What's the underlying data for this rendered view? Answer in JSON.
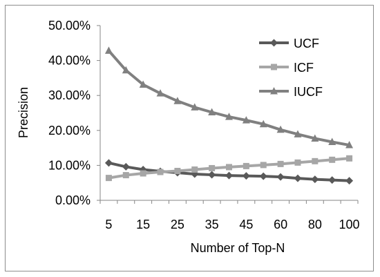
{
  "chart_data": {
    "type": "line",
    "title": "",
    "xlabel": "Number of Top-N",
    "ylabel": "Precision",
    "ylim": [
      0,
      50
    ],
    "yticks": [
      "0.00%",
      "10.00%",
      "20.00%",
      "30.00%",
      "40.00%",
      "50.00%"
    ],
    "x_ticks_shown": [
      "5",
      "15",
      "25",
      "35",
      "45",
      "60",
      "80",
      "100"
    ],
    "categories": [
      "5",
      "10",
      "15",
      "20",
      "25",
      "30",
      "35",
      "40",
      "45",
      "50",
      "60",
      "70",
      "80",
      "90",
      "100"
    ],
    "grid": false,
    "legend_position": "top-right",
    "series": [
      {
        "name": "UCF",
        "color": "#595959",
        "marker": "diamond",
        "values": [
          10.7,
          9.6,
          8.8,
          8.3,
          7.9,
          7.5,
          7.3,
          7.1,
          7.0,
          6.9,
          6.7,
          6.3,
          6.0,
          5.8,
          5.6
        ]
      },
      {
        "name": "ICF",
        "color": "#a6a6a6",
        "marker": "square",
        "values": [
          6.4,
          7.2,
          7.7,
          8.1,
          8.4,
          8.8,
          9.2,
          9.5,
          9.8,
          10.1,
          10.4,
          10.8,
          11.2,
          11.6,
          12.0
        ]
      },
      {
        "name": "IUCF",
        "color": "#808080",
        "marker": "triangle",
        "values": [
          42.8,
          37.2,
          33.1,
          30.6,
          28.4,
          26.6,
          25.2,
          23.9,
          22.9,
          21.8,
          20.2,
          18.9,
          17.7,
          16.7,
          15.8
        ]
      }
    ]
  }
}
